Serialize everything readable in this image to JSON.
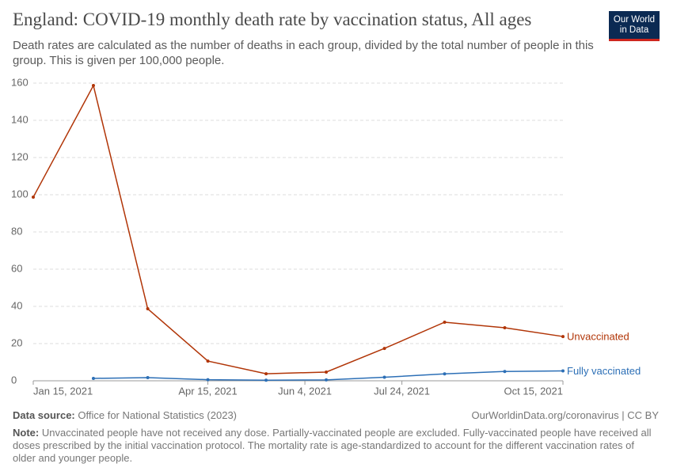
{
  "chart_data": {
    "type": "line",
    "title": "England: COVID-19 monthly death rate by vaccination status, All ages",
    "subtitle": "Death rates are calculated as the number of deaths in each group, divided by the total number of people in this group. This is given per 100,000 people.",
    "x": [
      "2021-01-15",
      "2021-02-15",
      "2021-03-15",
      "2021-04-15",
      "2021-05-15",
      "2021-06-15",
      "2021-07-15",
      "2021-08-15",
      "2021-09-15",
      "2021-10-15"
    ],
    "series": [
      {
        "name": "Unvaccinated",
        "color": "#b13507",
        "values": [
          98.7,
          158.7,
          38.7,
          10.6,
          3.8,
          4.7,
          17.4,
          31.5,
          28.5,
          23.8
        ]
      },
      {
        "name": "Fully vaccinated",
        "color": "#2c6fb6",
        "values": [
          null,
          1.3,
          1.7,
          0.6,
          0.3,
          0.5,
          1.9,
          3.7,
          5.0,
          5.3
        ]
      }
    ],
    "xlim": [
      "2021-01-15",
      "2021-10-15"
    ],
    "xticks": [
      {
        "value": "2021-01-15",
        "label": "Jan 15, 2021"
      },
      {
        "value": "2021-04-15",
        "label": "Apr 15, 2021"
      },
      {
        "value": "2021-06-04",
        "label": "Jun 4, 2021"
      },
      {
        "value": "2021-07-24",
        "label": "Jul 24, 2021"
      },
      {
        "value": "2021-10-15",
        "label": "Oct 15, 2021"
      }
    ],
    "ylim": [
      0,
      160
    ],
    "yticks": [
      0,
      20,
      40,
      60,
      80,
      100,
      120,
      140,
      160
    ],
    "grid": true
  },
  "logo": {
    "line1": "Our World",
    "line2": "in Data"
  },
  "footer": {
    "source_label": "Data source:",
    "source": "Office for National Statistics (2023)",
    "url": "OurWorldinData.org/coronavirus | CC BY",
    "note_label": "Note:",
    "note": "Unvaccinated people have not received any dose. Partially-vaccinated people are excluded. Fully-vaccinated people have received all doses prescribed by the initial vaccination protocol. The mortality rate is age-standardized to account for the different vaccination rates of older and younger people."
  }
}
